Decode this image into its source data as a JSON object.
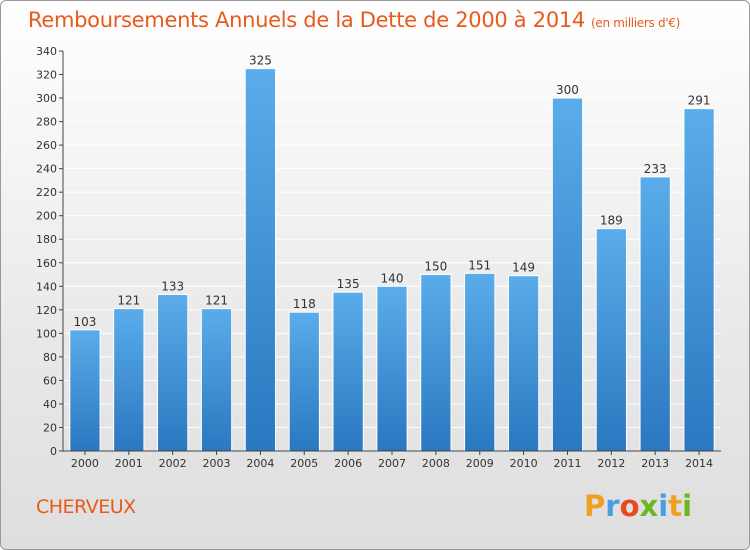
{
  "chart_data": {
    "type": "bar",
    "title": "Remboursements Annuels de la Dette de 2000 à 2014",
    "unit": "(en milliers d'€)",
    "categories": [
      "2000",
      "2001",
      "2002",
      "2003",
      "2004",
      "2005",
      "2006",
      "2007",
      "2008",
      "2009",
      "2010",
      "2011",
      "2012",
      "2013",
      "2014"
    ],
    "values": [
      103,
      121,
      133,
      121,
      325,
      118,
      135,
      140,
      150,
      151,
      149,
      300,
      189,
      233,
      291
    ],
    "yticks": [
      0,
      20,
      40,
      60,
      80,
      100,
      120,
      140,
      160,
      180,
      200,
      220,
      240,
      260,
      280,
      300,
      320,
      340
    ],
    "ylim": [
      0,
      340
    ],
    "grid": true,
    "bar_color": "#4a9fe0",
    "bar_color_dark": "#2a78c0",
    "show_data_labels": true
  },
  "footer": {
    "commune": "CHERVEUX",
    "brand": {
      "letters": [
        "P",
        "r",
        "o",
        "x",
        "i",
        "t",
        "i"
      ],
      "colors": [
        "#f0a020",
        "#4a9fe0",
        "#e84a20",
        "#6ab820",
        "#4a9fe0",
        "#f0a020",
        "#6ab820"
      ]
    }
  },
  "colors": {
    "title": "#e85a1c",
    "grid": "#ffffff",
    "axis": "#444444"
  }
}
